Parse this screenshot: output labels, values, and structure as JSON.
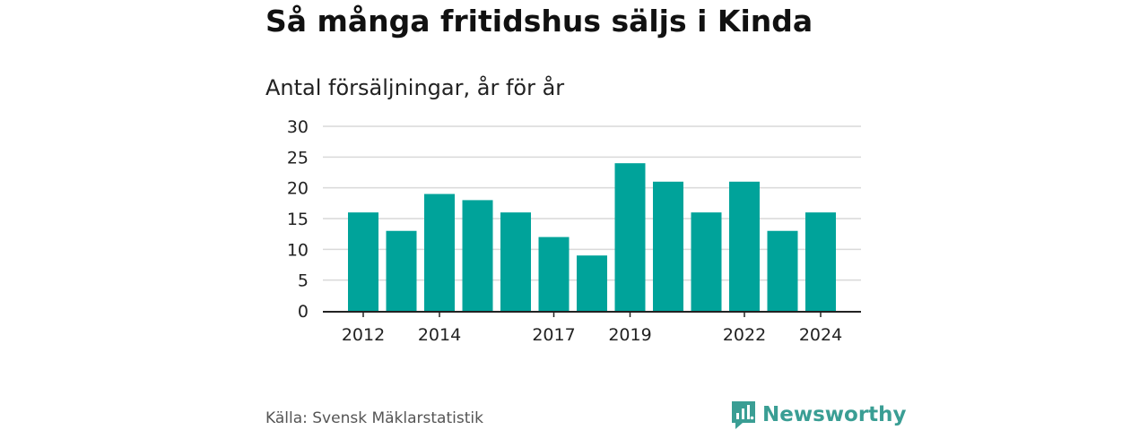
{
  "title": "Så många fritidshus säljs i Kinda",
  "subtitle": "Antal försäljningar, år för år",
  "source": "Källa: Svensk Mäklarstatistik",
  "brand": {
    "name": "Newsworthy",
    "icon": "newsworthy-logo-icon",
    "color": "#3a9e94"
  },
  "colors": {
    "bar": "#00a39a",
    "grid": "#d9d9d9",
    "axis": "#222222"
  },
  "chart_data": {
    "type": "bar",
    "title": "Så många fritidshus säljs i Kinda",
    "subtitle": "Antal försäljningar, år för år",
    "categories": [
      "2012",
      "2013",
      "2014",
      "2015",
      "2016",
      "2017",
      "2018",
      "2019",
      "2020",
      "2021",
      "2022",
      "2023",
      "2024"
    ],
    "values": [
      16,
      13,
      19,
      18,
      16,
      12,
      9,
      24,
      21,
      16,
      21,
      13,
      16
    ],
    "ylim": [
      0,
      30
    ],
    "yticks": [
      "0",
      "5",
      "10",
      "15",
      "20",
      "25",
      "30"
    ],
    "xtick_labels": [
      "2012",
      "2014",
      "2017",
      "2019",
      "2022",
      "2024"
    ],
    "grid": true,
    "legend": "none"
  }
}
